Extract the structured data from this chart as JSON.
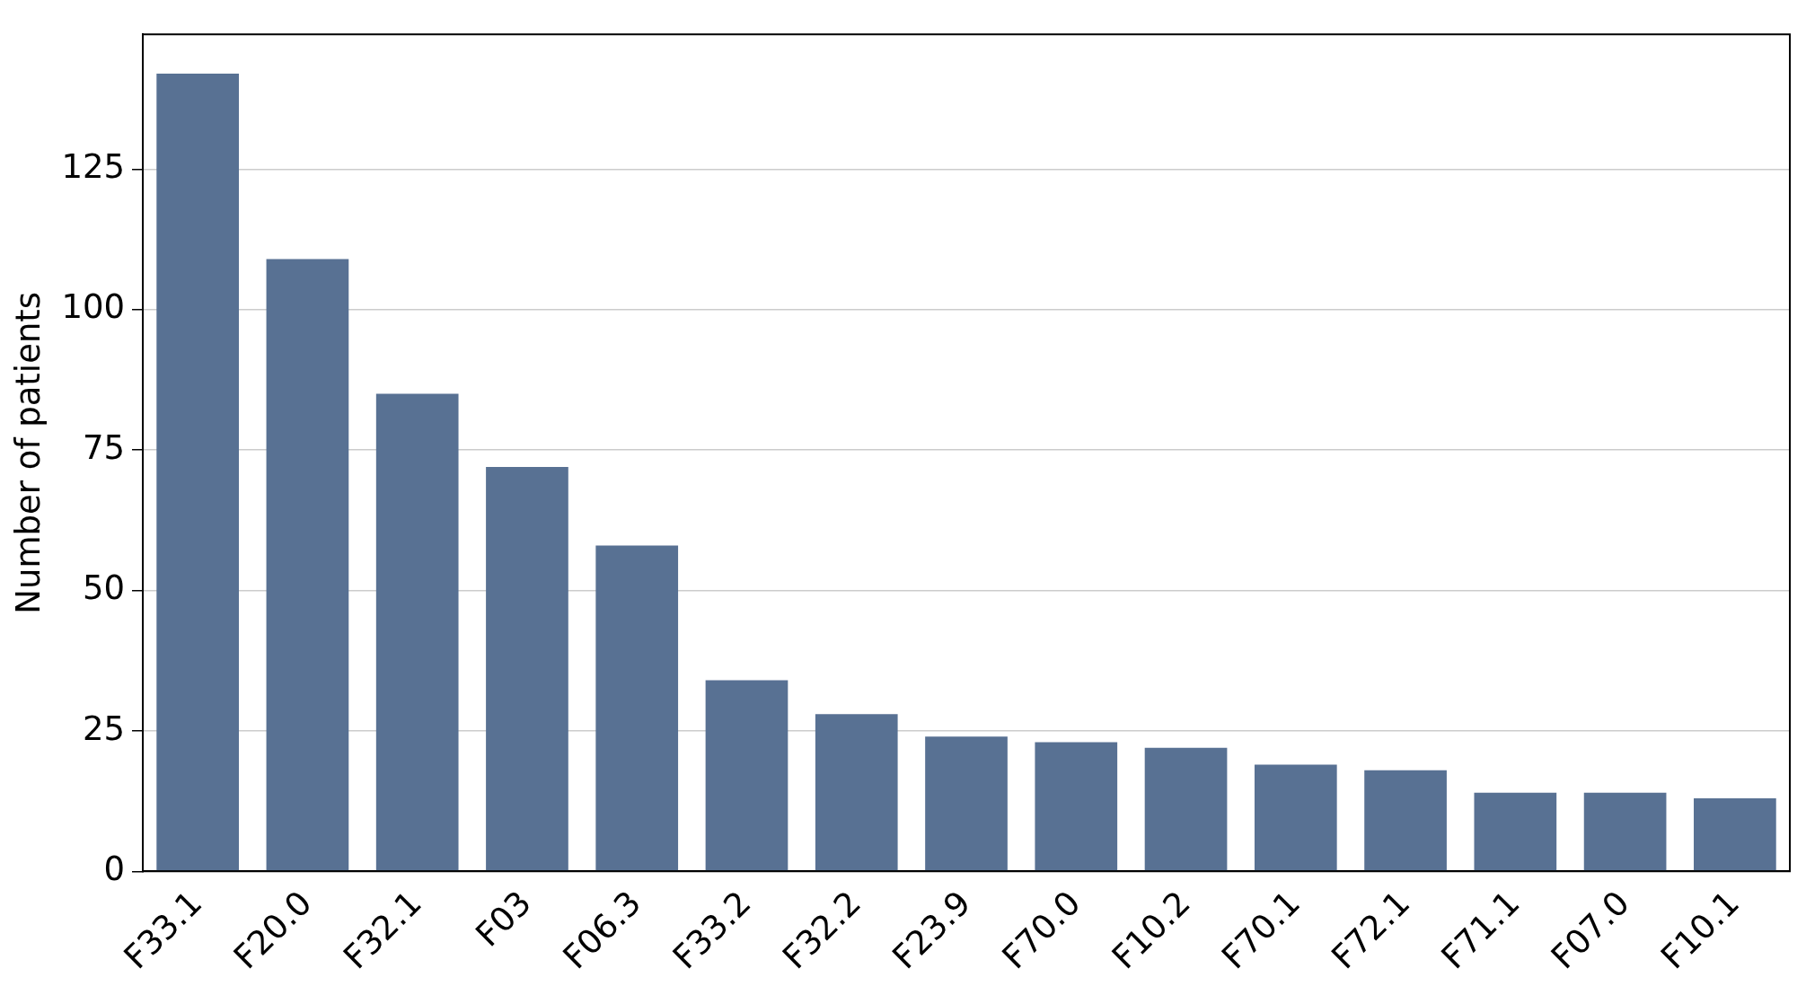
{
  "chart_data": {
    "type": "bar",
    "ylabel": "Number of patients",
    "categories": [
      "F33.1",
      "F20.0",
      "F32.1",
      "F03",
      "F06.3",
      "F33.2",
      "F32.2",
      "F23.9",
      "F70.0",
      "F10.2",
      "F70.1",
      "F72.1",
      "F71.1",
      "F07.0",
      "F10.1"
    ],
    "values": [
      142,
      109,
      85,
      72,
      58,
      34,
      28,
      24,
      23,
      22,
      19,
      18,
      14,
      14,
      13
    ],
    "color": "#587193",
    "ylim": [
      0,
      149
    ],
    "yticks": [
      0,
      25,
      50,
      75,
      100,
      125
    ],
    "grid": "y",
    "legend": false
  }
}
